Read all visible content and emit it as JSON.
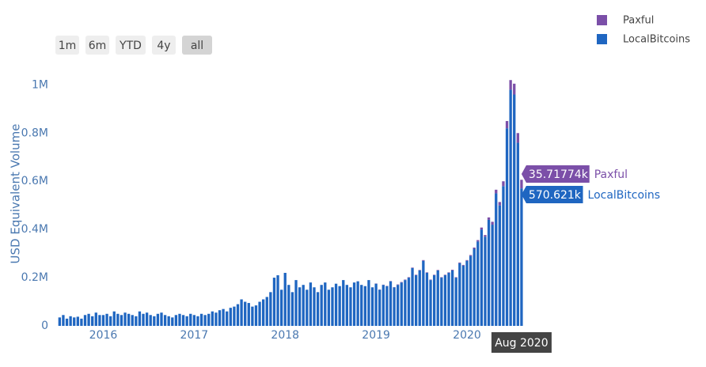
{
  "chart_data": {
    "type": "stacked_bar",
    "y_label": "USD Equivalent Volume",
    "range_buttons": [
      "1m",
      "6m",
      "YTD",
      "4y",
      "all"
    ],
    "active_button": "all",
    "legend": "top-right",
    "grid": false,
    "xlim": [
      2015.43,
      2020.74
    ],
    "xticks": [
      2016,
      2017,
      2018,
      2019,
      2020
    ],
    "ylim": [
      0,
      1070000
    ],
    "yticks": [
      0,
      {
        "value": 200000,
        "label": "0.2M"
      },
      {
        "value": 400000,
        "label": "0.4M"
      },
      {
        "value": 600000,
        "label": "0.6M"
      },
      {
        "value": 800000,
        "label": "0.8M"
      },
      {
        "value": 1000000,
        "label": "1M"
      }
    ],
    "x": [
      2015.52,
      2015.56,
      2015.6,
      2015.64,
      2015.68,
      2015.72,
      2015.76,
      2015.8,
      2015.84,
      2015.88,
      2015.92,
      2015.96,
      2016.0,
      2016.04,
      2016.08,
      2016.12,
      2016.16,
      2016.2,
      2016.24,
      2016.28,
      2016.32,
      2016.36,
      2016.4,
      2016.44,
      2016.48,
      2016.52,
      2016.56,
      2016.6,
      2016.64,
      2016.68,
      2016.72,
      2016.76,
      2016.8,
      2016.84,
      2016.88,
      2016.92,
      2016.96,
      2017.0,
      2017.04,
      2017.08,
      2017.12,
      2017.16,
      2017.2,
      2017.24,
      2017.28,
      2017.32,
      2017.36,
      2017.4,
      2017.44,
      2017.48,
      2017.52,
      2017.56,
      2017.6,
      2017.64,
      2017.68,
      2017.72,
      2017.76,
      2017.8,
      2017.84,
      2017.88,
      2017.92,
      2017.96,
      2018.0,
      2018.04,
      2018.08,
      2018.12,
      2018.16,
      2018.2,
      2018.24,
      2018.28,
      2018.32,
      2018.36,
      2018.4,
      2018.44,
      2018.48,
      2018.52,
      2018.56,
      2018.6,
      2018.64,
      2018.68,
      2018.72,
      2018.76,
      2018.8,
      2018.84,
      2018.88,
      2018.92,
      2018.96,
      2019.0,
      2019.04,
      2019.08,
      2019.12,
      2019.16,
      2019.2,
      2019.24,
      2019.28,
      2019.32,
      2019.36,
      2019.4,
      2019.44,
      2019.48,
      2019.52,
      2019.56,
      2019.6,
      2019.64,
      2019.68,
      2019.72,
      2019.76,
      2019.8,
      2019.84,
      2019.88,
      2019.92,
      2019.96,
      2020.0,
      2020.04,
      2020.08,
      2020.12,
      2020.16,
      2020.2,
      2020.24,
      2020.28,
      2020.32,
      2020.36,
      2020.4,
      2020.44,
      2020.48,
      2020.52,
      2020.56,
      2020.6
    ],
    "series": [
      {
        "name": "LocalBitcoins",
        "color": "#1f66c1",
        "values": [
          35000,
          45000,
          30000,
          40000,
          35000,
          38000,
          30000,
          45000,
          50000,
          40000,
          55000,
          45000,
          45000,
          50000,
          40000,
          60000,
          50000,
          45000,
          55000,
          50000,
          45000,
          40000,
          60000,
          50000,
          55000,
          45000,
          40000,
          50000,
          55000,
          45000,
          40000,
          35000,
          45000,
          50000,
          45000,
          40000,
          50000,
          45000,
          40000,
          50000,
          45000,
          50000,
          60000,
          55000,
          65000,
          70000,
          60000,
          75000,
          80000,
          90000,
          110000,
          100000,
          95000,
          80000,
          85000,
          100000,
          110000,
          120000,
          140000,
          200000,
          210000,
          150000,
          220000,
          170000,
          140000,
          190000,
          160000,
          170000,
          150000,
          180000,
          160000,
          140000,
          170000,
          180000,
          150000,
          160000,
          175000,
          165000,
          190000,
          170000,
          160000,
          180000,
          185000,
          170000,
          165000,
          190000,
          160000,
          175000,
          150000,
          170000,
          165000,
          185000,
          160000,
          170000,
          180000,
          190000,
          200000,
          240000,
          210000,
          230000,
          270000,
          220000,
          190000,
          210000,
          230000,
          200000,
          210000,
          220000,
          230000,
          200000,
          260000,
          250000,
          270000,
          290000,
          320000,
          350000,
          400000,
          370000,
          440000,
          420000,
          550000,
          500000,
          580000,
          820000,
          980000,
          960000,
          760000,
          570621
        ]
      },
      {
        "name": "Paxful",
        "color": "#7b4fa8",
        "values": [
          0,
          0,
          0,
          0,
          0,
          0,
          0,
          0,
          0,
          0,
          0,
          0,
          0,
          0,
          0,
          0,
          0,
          0,
          0,
          0,
          0,
          0,
          0,
          0,
          0,
          0,
          0,
          0,
          0,
          0,
          0,
          0,
          0,
          0,
          0,
          0,
          0,
          0,
          0,
          0,
          0,
          0,
          0,
          0,
          0,
          0,
          0,
          0,
          0,
          0,
          0,
          0,
          0,
          0,
          0,
          0,
          0,
          0,
          0,
          0,
          0,
          0,
          0,
          0,
          0,
          0,
          0,
          0,
          0,
          0,
          0,
          0,
          0,
          0,
          0,
          0,
          0,
          0,
          0,
          0,
          0,
          0,
          0,
          0,
          0,
          0,
          0,
          1000,
          1000,
          1000,
          1000,
          1000,
          1000,
          2000,
          2000,
          2000,
          2000,
          2000,
          2000,
          2000,
          3000,
          2000,
          2000,
          2000,
          2000,
          2000,
          2000,
          2000,
          3000,
          2000,
          3000,
          3000,
          3000,
          4000,
          5000,
          6000,
          8000,
          7000,
          10000,
          12000,
          15000,
          14000,
          20000,
          30000,
          40000,
          45000,
          40000,
          35717.74
        ]
      }
    ],
    "hover": {
      "x": {
        "value": 2020.6,
        "label": "Aug 2020"
      },
      "labels": [
        "570.621k",
        "35.71774k"
      ]
    }
  }
}
